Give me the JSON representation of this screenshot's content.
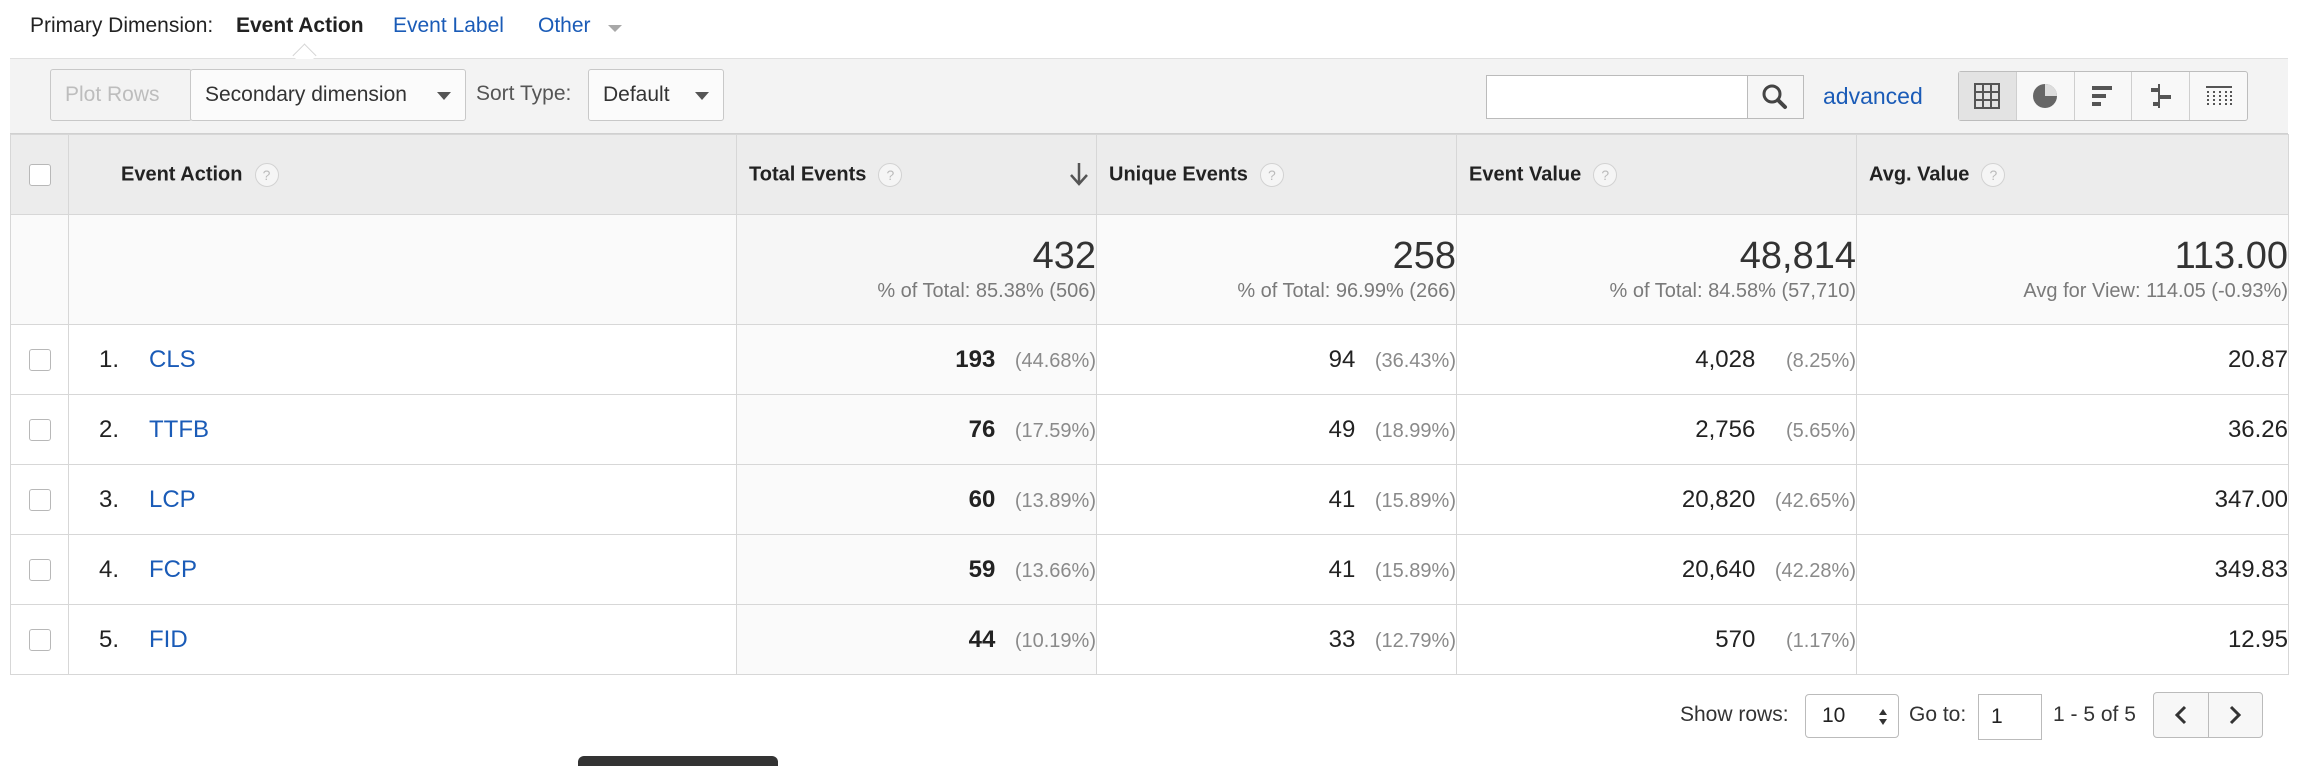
{
  "primary_dimension": {
    "label": "Primary Dimension:",
    "active": "Event Action",
    "options": [
      "Event Label",
      "Other"
    ]
  },
  "toolbar": {
    "plot_rows": "Plot Rows",
    "secondary_dimension": "Secondary dimension",
    "sort_type_label": "Sort Type:",
    "sort_type_value": "Default",
    "search_value": "",
    "advanced": "advanced"
  },
  "table": {
    "headers": {
      "event_action": "Event Action",
      "total_events": "Total Events",
      "unique_events": "Unique Events",
      "event_value": "Event Value",
      "avg_value": "Avg. Value"
    },
    "help_glyph": "?",
    "totals": {
      "total_events": "432",
      "total_events_sub": "% of Total: 85.38% (506)",
      "unique_events": "258",
      "unique_events_sub": "% of Total: 96.99% (266)",
      "event_value": "48,814",
      "event_value_sub": "% of Total: 84.58% (57,710)",
      "avg_value": "113.00",
      "avg_value_sub": "Avg for View: 114.05 (-0.93%)"
    },
    "rows": [
      {
        "index": "1.",
        "action": "CLS",
        "total": "193",
        "total_pct": "(44.68%)",
        "unique": "94",
        "unique_pct": "(36.43%)",
        "value": "4,028",
        "value_pct": "(8.25%)",
        "avg": "20.87"
      },
      {
        "index": "2.",
        "action": "TTFB",
        "total": "76",
        "total_pct": "(17.59%)",
        "unique": "49",
        "unique_pct": "(18.99%)",
        "value": "2,756",
        "value_pct": "(5.65%)",
        "avg": "36.26"
      },
      {
        "index": "3.",
        "action": "LCP",
        "total": "60",
        "total_pct": "(13.89%)",
        "unique": "41",
        "unique_pct": "(15.89%)",
        "value": "20,820",
        "value_pct": "(42.65%)",
        "avg": "347.00"
      },
      {
        "index": "4.",
        "action": "FCP",
        "total": "59",
        "total_pct": "(13.66%)",
        "unique": "41",
        "unique_pct": "(15.89%)",
        "value": "20,640",
        "value_pct": "(42.28%)",
        "avg": "349.83"
      },
      {
        "index": "5.",
        "action": "FID",
        "total": "44",
        "total_pct": "(10.19%)",
        "unique": "33",
        "unique_pct": "(12.79%)",
        "value": "570",
        "value_pct": "(1.17%)",
        "avg": "12.95"
      }
    ]
  },
  "footer": {
    "show_rows_label": "Show rows:",
    "show_rows_value": "10",
    "goto_label": "Go to:",
    "goto_value": "1",
    "range": "1 - 5 of 5",
    "prev": "‹",
    "next": "›"
  },
  "colors": {
    "link": "#1a5bb7",
    "header_bg": "#ececec"
  }
}
